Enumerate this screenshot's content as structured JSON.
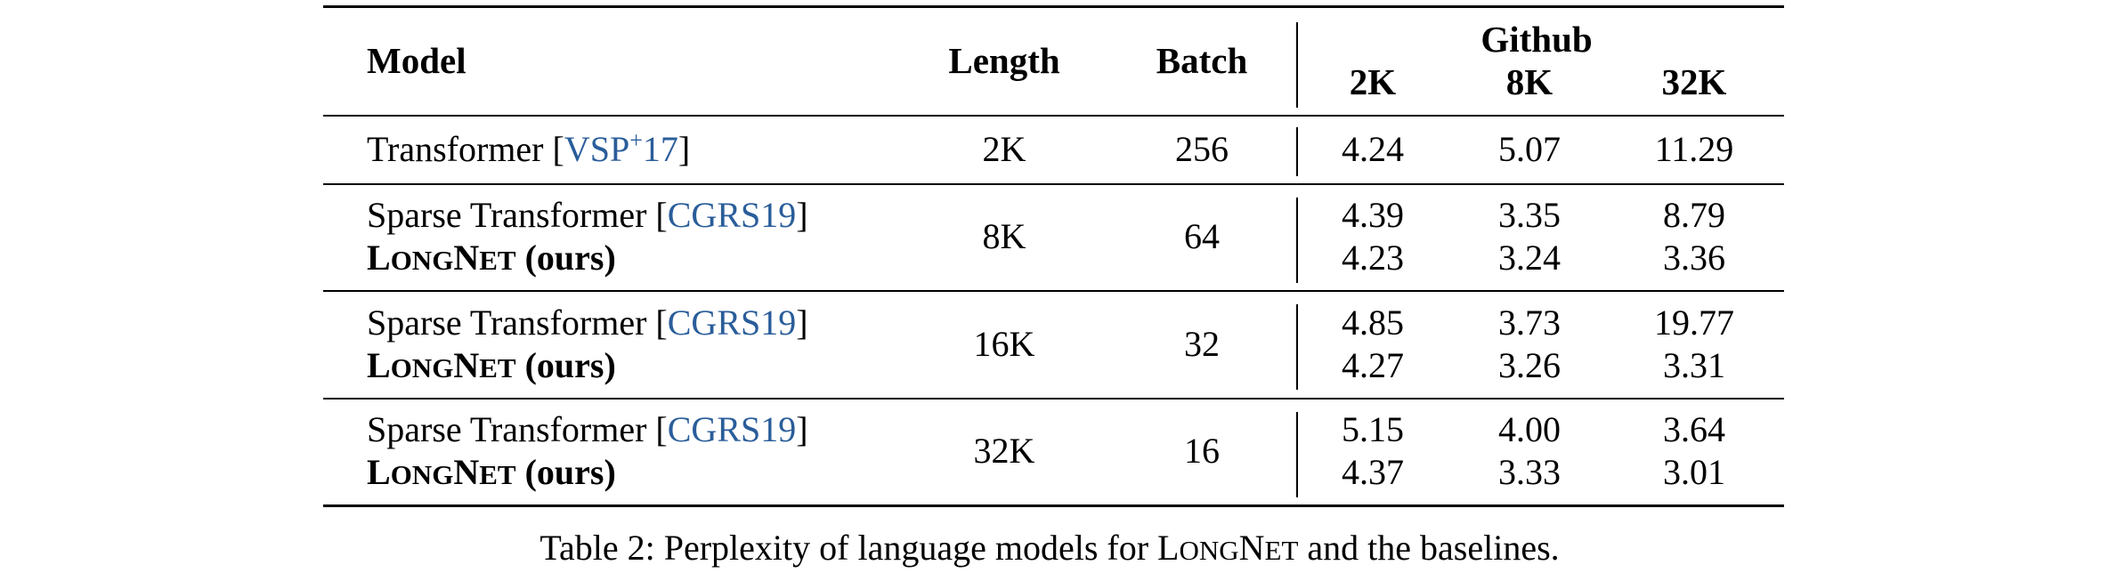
{
  "table": {
    "headers": {
      "model": "Model",
      "length": "Length",
      "batch": "Batch",
      "group": "Github",
      "sub": [
        "2K",
        "8K",
        "32K"
      ]
    },
    "rows": [
      {
        "models": [
          {
            "name": "Transformer",
            "cite_main": "VSP",
            "cite_sup": "+",
            "cite_tail": "17"
          }
        ],
        "length": "2K",
        "batch": "256",
        "values": [
          [
            "4.24",
            "5.07",
            "11.29"
          ]
        ]
      },
      {
        "models": [
          {
            "name": "Sparse Transformer",
            "cite": "CGRS19"
          },
          {
            "name_caps": [
              [
                "L",
                "ONG"
              ],
              [
                "N",
                "ET"
              ]
            ],
            "suffix": " (ours)"
          }
        ],
        "length": "8K",
        "batch": "64",
        "values": [
          [
            "4.39",
            "3.35",
            "8.79"
          ],
          [
            "4.23",
            "3.24",
            "3.36"
          ]
        ]
      },
      {
        "models": [
          {
            "name": "Sparse Transformer",
            "cite": "CGRS19"
          },
          {
            "name_caps": [
              [
                "L",
                "ONG"
              ],
              [
                "N",
                "ET"
              ]
            ],
            "suffix": " (ours)"
          }
        ],
        "length": "16K",
        "batch": "32",
        "values": [
          [
            "4.85",
            "3.73",
            "19.77"
          ],
          [
            "4.27",
            "3.26",
            "3.31"
          ]
        ]
      },
      {
        "models": [
          {
            "name": "Sparse Transformer",
            "cite": "CGRS19"
          },
          {
            "name_caps": [
              [
                "L",
                "ONG"
              ],
              [
                "N",
                "ET"
              ]
            ],
            "suffix": " (ours)"
          }
        ],
        "length": "32K",
        "batch": "16",
        "values": [
          [
            "5.15",
            "4.00",
            "3.64"
          ],
          [
            "4.37",
            "3.33",
            "3.01"
          ]
        ]
      }
    ]
  },
  "caption": {
    "prefix": "Table 2: Perplexity of language models for ",
    "name_caps": [
      [
        "L",
        "ONG"
      ],
      [
        "N",
        "ET"
      ]
    ],
    "suffix": " and the baselines."
  }
}
